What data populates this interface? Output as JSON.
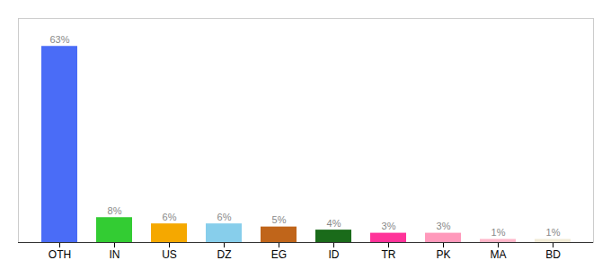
{
  "chart_data": {
    "type": "bar",
    "categories": [
      "OTH",
      "IN",
      "US",
      "DZ",
      "EG",
      "ID",
      "TR",
      "PK",
      "MA",
      "BD"
    ],
    "values": [
      63,
      8,
      6,
      6,
      5,
      4,
      3,
      3,
      1,
      1
    ],
    "value_labels": [
      "63%",
      "8%",
      "6%",
      "6%",
      "5%",
      "4%",
      "3%",
      "3%",
      "1%",
      "1%"
    ],
    "colors": [
      "#4a6cf7",
      "#33cc33",
      "#f5a800",
      "#87ceeb",
      "#c0651a",
      "#1a6b1a",
      "#ff3399",
      "#ff99bb",
      "#ffb5c8",
      "#f0ead6"
    ],
    "ylim": [
      0,
      72
    ],
    "data_labels": true,
    "tick_labels": "x",
    "grid": false
  }
}
